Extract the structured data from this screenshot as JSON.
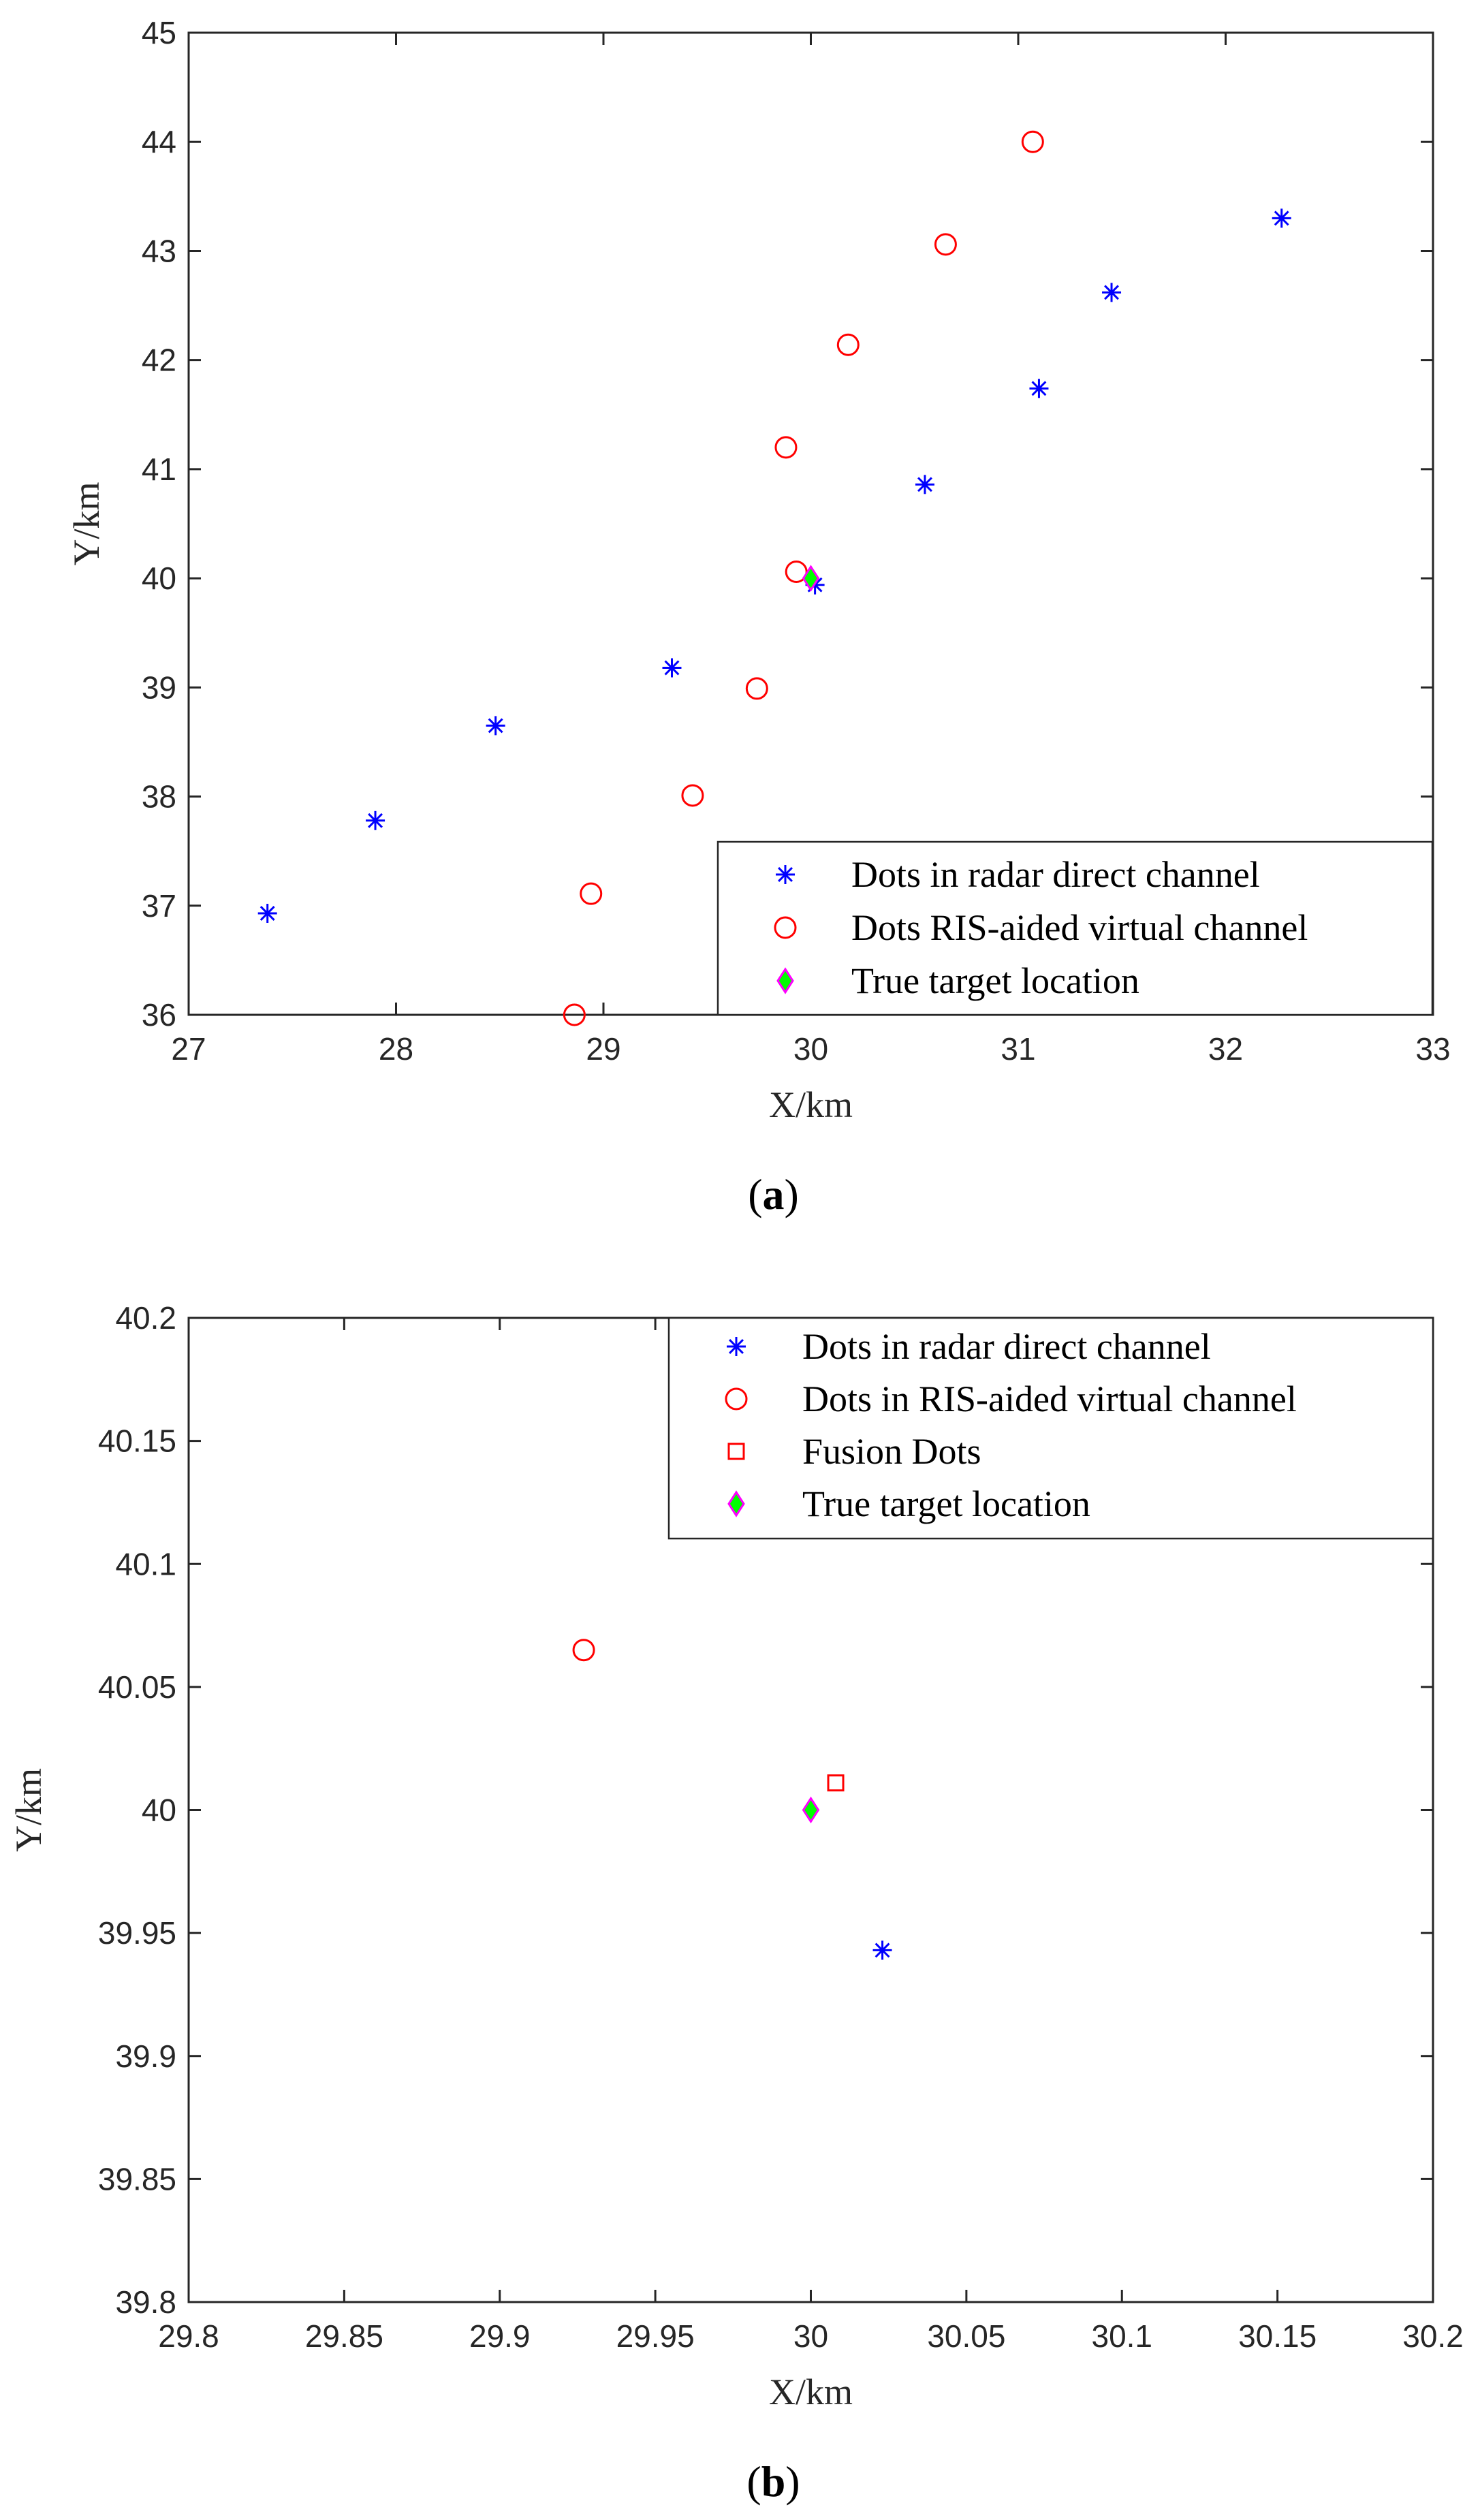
{
  "chart_data": [
    {
      "type": "scatter",
      "caption": "(a)",
      "caption_letter": "a",
      "xlabel": "X/km",
      "ylabel": "Y/km",
      "xlim": [
        27,
        33
      ],
      "ylim": [
        36,
        45
      ],
      "xticks": [
        27,
        28,
        29,
        30,
        31,
        32,
        33
      ],
      "yticks": [
        36,
        37,
        38,
        39,
        40,
        41,
        42,
        43,
        44,
        45
      ],
      "grid": false,
      "legend_position": "bottom-right",
      "series": [
        {
          "name": "Dots in radar direct channel",
          "marker": "asterisk",
          "color": "#0000ff",
          "points": [
            [
              27.38,
              36.93
            ],
            [
              27.9,
              37.78
            ],
            [
              28.48,
              38.65
            ],
            [
              29.33,
              39.18
            ],
            [
              30.02,
              39.94
            ],
            [
              30.55,
              40.86
            ],
            [
              31.1,
              41.74
            ],
            [
              31.45,
              42.62
            ],
            [
              32.27,
              43.3
            ]
          ]
        },
        {
          "name": "Dots RIS-aided virtual channel",
          "marker": "circle",
          "color": "#ff0000",
          "points": [
            [
              28.86,
              36.0
            ],
            [
              28.94,
              37.11
            ],
            [
              29.43,
              38.01
            ],
            [
              29.74,
              38.99
            ],
            [
              29.93,
              40.06
            ],
            [
              29.88,
              41.2
            ],
            [
              30.18,
              42.14
            ],
            [
              30.65,
              43.06
            ],
            [
              31.07,
              44.0
            ]
          ]
        },
        {
          "name": "True target location",
          "marker": "diamond",
          "color": "#00ff00",
          "edge": "#ff00ff",
          "points": [
            [
              30.0,
              40.0
            ]
          ]
        }
      ]
    },
    {
      "type": "scatter",
      "caption": "(b)",
      "caption_letter": "b",
      "xlabel": "X/km",
      "ylabel": "Y/km",
      "xlim": [
        29.8,
        30.2
      ],
      "ylim": [
        39.8,
        40.2
      ],
      "xticks": [
        "29.8",
        "29.85",
        "29.9",
        "29.95",
        "30",
        "30.05",
        "30.1",
        "30.15",
        "30.2"
      ],
      "yticks": [
        "39.8",
        "39.85",
        "39.9",
        "39.95",
        "40",
        "40.05",
        "40.1",
        "40.15",
        "40.2"
      ],
      "grid": false,
      "legend_position": "top-right",
      "series": [
        {
          "name": "Dots in radar direct channel",
          "marker": "asterisk",
          "color": "#0000ff",
          "points": [
            [
              30.023,
              39.943
            ]
          ]
        },
        {
          "name": "Dots in RIS-aided virtual channel",
          "marker": "circle",
          "color": "#ff0000",
          "points": [
            [
              29.927,
              40.065
            ]
          ]
        },
        {
          "name": "Fusion Dots",
          "marker": "square",
          "color": "#ff0000",
          "points": [
            [
              30.008,
              40.011
            ]
          ]
        },
        {
          "name": "True target location",
          "marker": "diamond",
          "color": "#00ff00",
          "edge": "#ff00ff",
          "points": [
            [
              30.0,
              40.0
            ]
          ]
        }
      ]
    }
  ]
}
